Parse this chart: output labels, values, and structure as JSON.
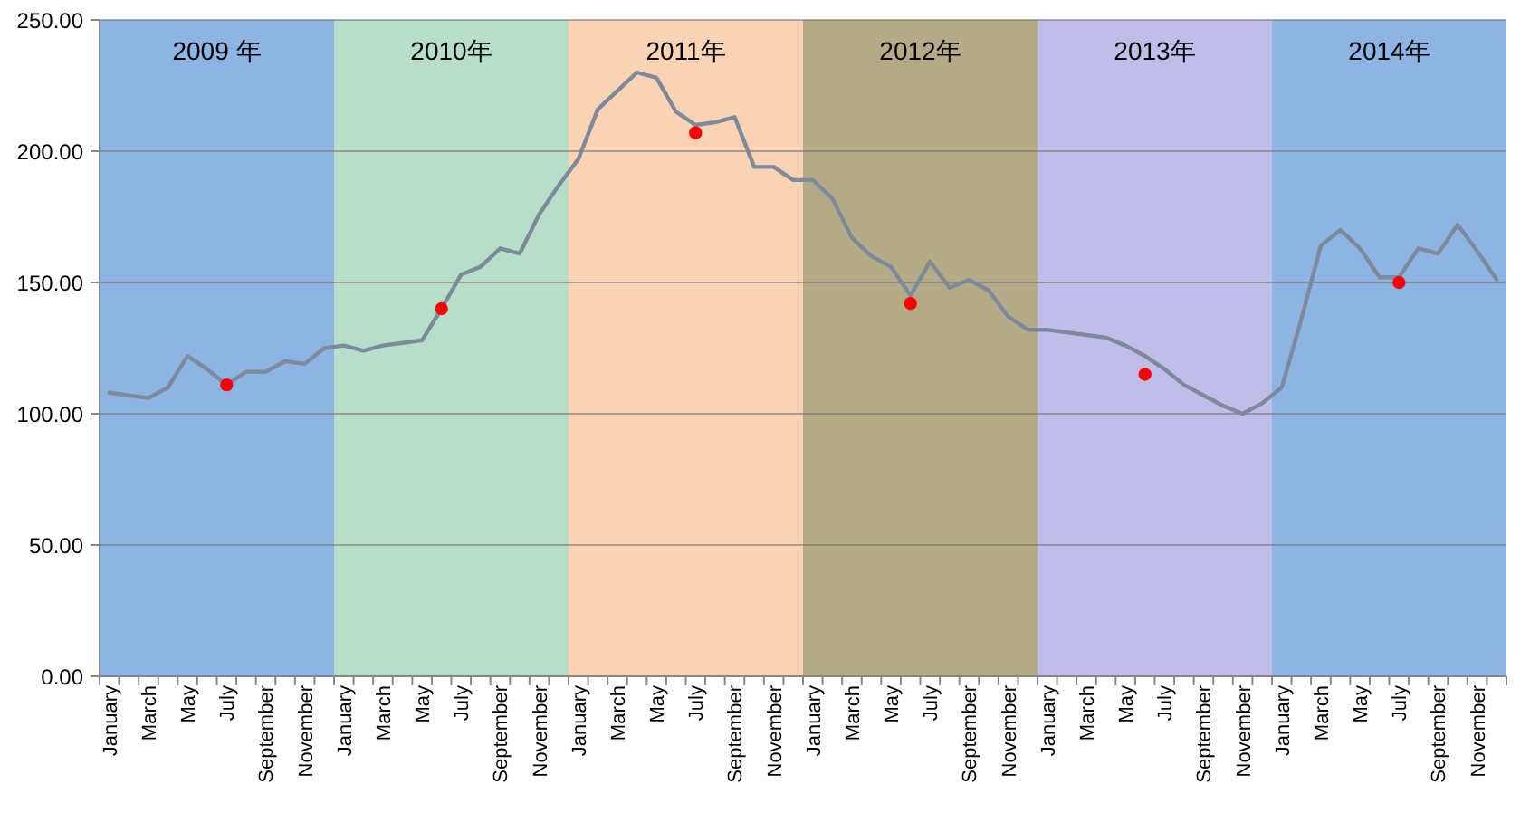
{
  "chart_data": {
    "type": "line",
    "categories": [
      "January",
      null,
      "March",
      null,
      "May",
      null,
      "July",
      null,
      "September",
      null,
      "November",
      null,
      "January",
      null,
      "March",
      null,
      "May",
      null,
      "July",
      null,
      "September",
      null,
      "November",
      null,
      "January",
      null,
      "March",
      null,
      "May",
      null,
      "July",
      null,
      "September",
      null,
      "November",
      null,
      "January",
      null,
      "March",
      null,
      "May",
      null,
      "July",
      null,
      "September",
      null,
      "November",
      null,
      "January",
      null,
      "March",
      null,
      "May",
      null,
      "July",
      null,
      "September",
      null,
      "November",
      null,
      "January",
      null,
      "March",
      null,
      "May",
      null,
      "July",
      null,
      "September",
      null,
      "November",
      null
    ],
    "series": [
      {
        "color": "#7d8a9c",
        "values": [
          108,
          107,
          106,
          110,
          122,
          117,
          111,
          116,
          116,
          120,
          119,
          125,
          126,
          124,
          126,
          127,
          128,
          140,
          153,
          156,
          163,
          161,
          176,
          187,
          197,
          216,
          223,
          230,
          228,
          215,
          210,
          211,
          213,
          194,
          194,
          189,
          189,
          182,
          167,
          160,
          156,
          145,
          158,
          148,
          151,
          147,
          137,
          132,
          132,
          131,
          130,
          129,
          126,
          122,
          117,
          111,
          107,
          103,
          100,
          104,
          110,
          136,
          164,
          170,
          163,
          152,
          152,
          163,
          161,
          172,
          162,
          151
        ]
      },
      {
        "type": "scatter",
        "color": "#ff0000",
        "marker": "circle",
        "values": [
          null,
          null,
          null,
          null,
          null,
          null,
          111,
          null,
          null,
          null,
          null,
          null,
          null,
          null,
          null,
          null,
          null,
          140,
          null,
          null,
          null,
          null,
          null,
          null,
          null,
          null,
          null,
          null,
          null,
          null,
          207,
          null,
          null,
          null,
          null,
          null,
          null,
          null,
          null,
          null,
          null,
          142,
          null,
          null,
          null,
          null,
          null,
          null,
          null,
          null,
          null,
          null,
          null,
          115,
          null,
          null,
          null,
          null,
          null,
          null,
          null,
          null,
          null,
          null,
          null,
          null,
          150,
          null,
          null,
          null,
          null,
          null
        ]
      }
    ],
    "ylim": [
      0,
      250
    ],
    "yticks": [
      {
        "value": 0,
        "label": "0.00"
      },
      {
        "value": 50,
        "label": "50.00"
      },
      {
        "value": 100,
        "label": "100.00"
      },
      {
        "value": 150,
        "label": "150.00"
      },
      {
        "value": 200,
        "label": "200.00"
      },
      {
        "value": 250,
        "label": "250.00"
      }
    ],
    "grid": "y",
    "annotations": [
      "2009 年",
      "2010年",
      "2011年",
      "2012年",
      "2013年",
      "2014年"
    ]
  }
}
